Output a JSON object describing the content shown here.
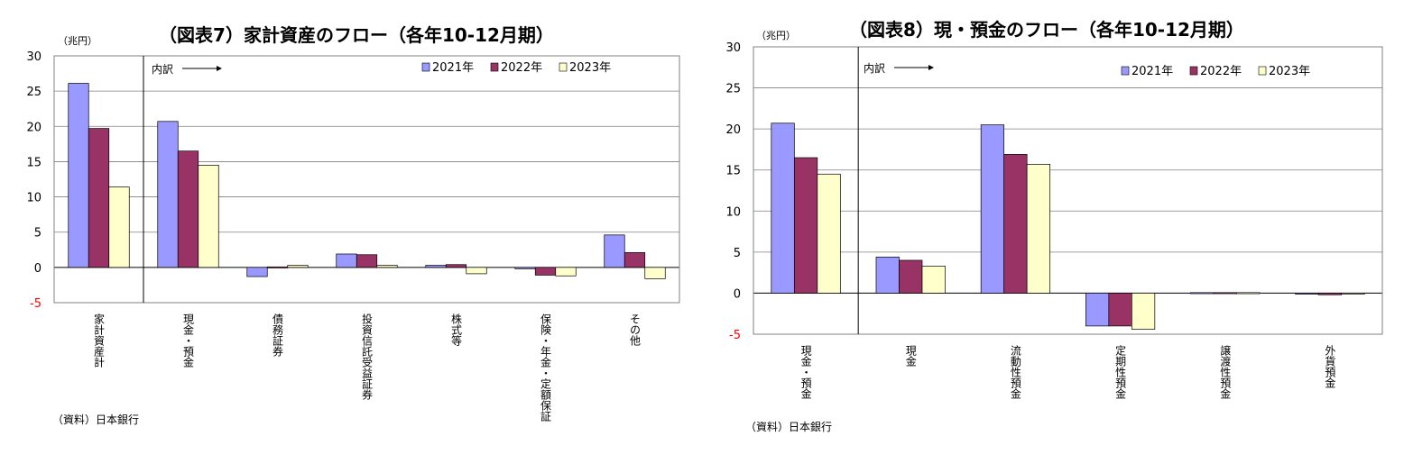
{
  "colors": {
    "series": [
      "#9999ff",
      "#993366",
      "#ffffcc"
    ],
    "grid": "#808080",
    "axis_text": "#000000",
    "negative_tick": "#ff0000"
  },
  "chart_data": [
    {
      "type": "bar",
      "title": "（図表7）家計資産のフロー（各年10-12月期）",
      "unit_label": "（兆円）",
      "breakdown_label": "内訳",
      "source": "（資料）日本銀行",
      "ylim": [
        -5,
        30
      ],
      "yticks": [
        30,
        25,
        20,
        15,
        10,
        5,
        0,
        -5
      ],
      "categories": [
        "家計資産計",
        "現金・預金",
        "債務証券",
        "投資信託受益証券",
        "株式等",
        "保険・年金・定額保証",
        "その他"
      ],
      "series": [
        {
          "name": "2021年",
          "values": [
            26.1,
            20.7,
            -1.3,
            1.9,
            0.3,
            -0.2,
            4.6
          ]
        },
        {
          "name": "2022年",
          "values": [
            19.7,
            16.5,
            0.0,
            1.8,
            0.4,
            -1.1,
            2.1
          ]
        },
        {
          "name": "2023年",
          "values": [
            11.4,
            14.5,
            0.3,
            0.3,
            -0.9,
            -1.2,
            -1.6
          ]
        }
      ]
    },
    {
      "type": "bar",
      "title": "（図表8）現・預金のフロー（各年10-12月期）",
      "unit_label": "（兆円）",
      "breakdown_label": "内訳",
      "source": "（資料）日本銀行",
      "ylim": [
        -5,
        30
      ],
      "yticks": [
        30,
        25,
        20,
        15,
        10,
        5,
        0,
        -5
      ],
      "categories": [
        "現金・預金",
        "現金",
        "流動性預金",
        "定期性預金",
        "譲渡性預金",
        "外貨預金"
      ],
      "series": [
        {
          "name": "2021年",
          "values": [
            20.7,
            4.4,
            20.5,
            -4.0,
            0.0,
            -0.1
          ]
        },
        {
          "name": "2022年",
          "values": [
            16.5,
            4.0,
            16.9,
            -4.0,
            0.0,
            -0.2
          ]
        },
        {
          "name": "2023年",
          "values": [
            14.5,
            3.3,
            15.7,
            -4.4,
            0.0,
            -0.1
          ]
        }
      ]
    }
  ]
}
